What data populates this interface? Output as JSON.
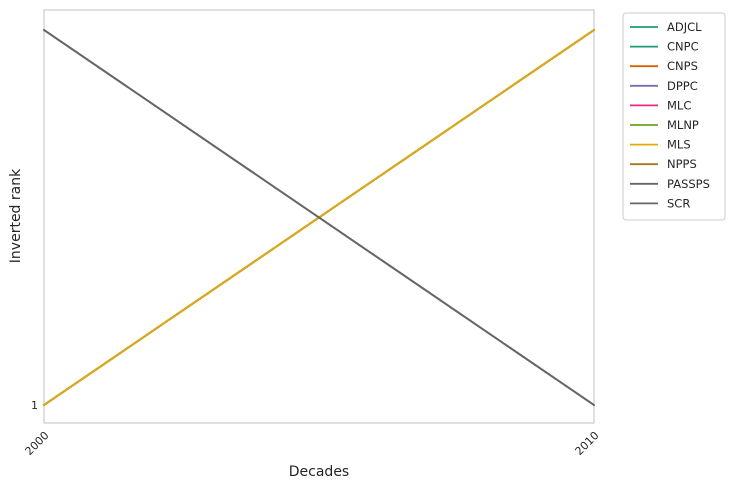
{
  "chart_data": {
    "type": "line",
    "xlabel": "Decades",
    "ylabel": "Inverted rank",
    "x": [
      2000,
      2010
    ],
    "x_ticks": [
      "2000",
      "2010"
    ],
    "y_ticks": [
      "1"
    ],
    "ylim": [
      1,
      2
    ],
    "grid": false,
    "legend_position": "outside-top-right",
    "series": [
      {
        "name": "ADJCL",
        "color": "#1b9e77",
        "values": [
          1,
          2
        ]
      },
      {
        "name": "CNPC",
        "color": "#1b9e77",
        "values": [
          1,
          2
        ]
      },
      {
        "name": "CNPS",
        "color": "#d95f02",
        "values": [
          1,
          2
        ]
      },
      {
        "name": "DPPC",
        "color": "#7570b3",
        "values": [
          1,
          2
        ]
      },
      {
        "name": "MLC",
        "color": "#e7298a",
        "values": [
          1,
          2
        ]
      },
      {
        "name": "MLNP",
        "color": "#66a61e",
        "values": [
          1,
          2
        ]
      },
      {
        "name": "MLS",
        "color": "#e6ab02",
        "values": [
          1,
          2
        ]
      },
      {
        "name": "NPPS",
        "color": "#a6761d",
        "values": [
          2,
          1
        ]
      },
      {
        "name": "PASSPS",
        "color": "#666666",
        "values": [
          2,
          1
        ]
      },
      {
        "name": "SCR",
        "color": "#666666",
        "values": [
          2,
          1
        ]
      }
    ]
  }
}
